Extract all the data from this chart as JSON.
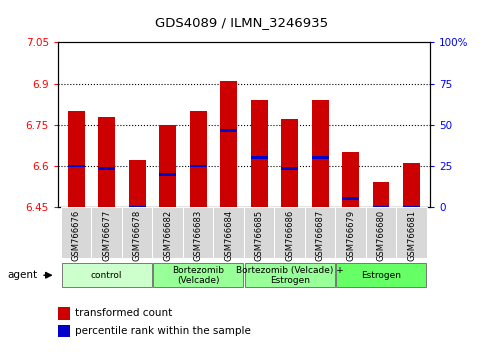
{
  "title": "GDS4089 / ILMN_3246935",
  "samples": [
    "GSM766676",
    "GSM766677",
    "GSM766678",
    "GSM766682",
    "GSM766683",
    "GSM766684",
    "GSM766685",
    "GSM766686",
    "GSM766687",
    "GSM766679",
    "GSM766680",
    "GSM766681"
  ],
  "bar_values": [
    6.8,
    6.78,
    6.62,
    6.75,
    6.8,
    6.91,
    6.84,
    6.77,
    6.84,
    6.65,
    6.54,
    6.61
  ],
  "blue_values": [
    6.6,
    6.59,
    6.45,
    6.57,
    6.6,
    6.73,
    6.63,
    6.59,
    6.63,
    6.48,
    6.45,
    6.45
  ],
  "ymin": 6.45,
  "ymax": 7.05,
  "yticks": [
    6.45,
    6.6,
    6.75,
    6.9,
    7.05
  ],
  "ytick_labels": [
    "6.45",
    "6.6",
    "6.75",
    "6.9",
    "7.05"
  ],
  "right_ytick_labels": [
    "0",
    "25",
    "50",
    "75",
    "100%"
  ],
  "bar_color": "#cc0000",
  "blue_color": "#0000cc",
  "bar_width": 0.55,
  "legend_items": [
    "transformed count",
    "percentile rank within the sample"
  ],
  "agent_label": "agent",
  "group_colors": [
    "#ccffcc",
    "#99ff99",
    "#99ff99",
    "#66ff66"
  ],
  "group_labels": [
    "control",
    "Bortezomib\n(Velcade)",
    "Bortezomib (Velcade) +\nEstrogen",
    "Estrogen"
  ],
  "group_ranges": [
    [
      0,
      3
    ],
    [
      3,
      6
    ],
    [
      6,
      9
    ],
    [
      9,
      12
    ]
  ]
}
